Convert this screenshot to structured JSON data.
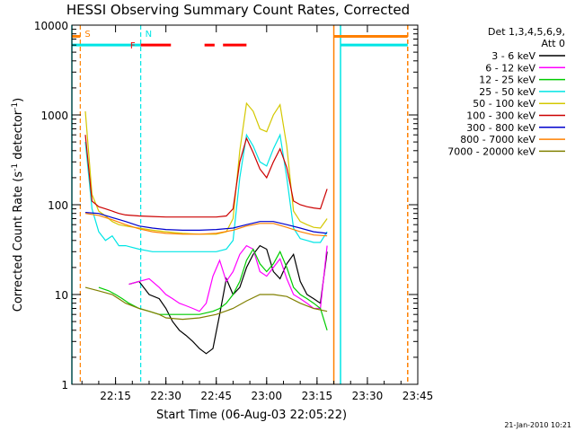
{
  "chart_data": {
    "type": "line",
    "title": "HESSI Observing Summary Count Rates, Corrected",
    "xlabel": "Start Time (06-Aug-03 22:05:22)",
    "ylabel_main": "Corrected Count Rate (s",
    "ylabel_sup1": "-1",
    "ylabel_mid": " detector",
    "ylabel_sup2": "-1",
    "ylabel_end": ")",
    "ylabel_full": "Corrected Count Rate (s-1 detector-1)",
    "xlim_minutes": [
      1322,
      1425
    ],
    "ylim": [
      1,
      10000
    ],
    "yscale": "log",
    "x_ticks": [
      {
        "t": 1335,
        "label": "22:15"
      },
      {
        "t": 1350,
        "label": "22:30"
      },
      {
        "t": 1365,
        "label": "22:45"
      },
      {
        "t": 1380,
        "label": "23:00"
      },
      {
        "t": 1395,
        "label": "23:15"
      },
      {
        "t": 1410,
        "label": "23:30"
      },
      {
        "t": 1425,
        "label": "23:45"
      }
    ],
    "y_ticks": [
      {
        "v": 1,
        "label": "1"
      },
      {
        "v": 10,
        "label": "10"
      },
      {
        "v": 100,
        "label": "100"
      },
      {
        "v": 1000,
        "label": "1000"
      },
      {
        "v": 10000,
        "label": "10000"
      }
    ],
    "legend": {
      "header_line1": "Det 1,3,4,5,6,9,",
      "header_line2": "Att 0",
      "placement": "right"
    },
    "series": [
      {
        "name": "3 - 6 keV",
        "color": "#000000",
        "x": [
          1339,
          1342,
          1345,
          1348,
          1350,
          1352,
          1354,
          1356,
          1358,
          1360,
          1362,
          1364,
          1366,
          1368,
          1370,
          1372,
          1374,
          1376,
          1378,
          1380,
          1382,
          1384,
          1386,
          1388,
          1390,
          1392,
          1394,
          1396,
          1398
        ],
        "y": [
          13,
          14,
          10,
          9,
          7,
          5,
          4,
          3.5,
          3,
          2.5,
          2.2,
          2.5,
          6,
          15,
          10,
          12,
          20,
          28,
          35,
          32,
          18,
          15,
          22,
          28,
          14,
          10,
          9,
          8,
          30
        ]
      },
      {
        "name": "6 - 12 keV",
        "color": "#ff00ff",
        "x": [
          1339,
          1342,
          1345,
          1348,
          1350,
          1352,
          1354,
          1356,
          1358,
          1360,
          1362,
          1364,
          1366,
          1368,
          1370,
          1372,
          1374,
          1376,
          1378,
          1380,
          1382,
          1384,
          1386,
          1388,
          1390,
          1392,
          1394,
          1396,
          1398
        ],
        "y": [
          13,
          14,
          15,
          12,
          10,
          9,
          8,
          7.5,
          7,
          6.5,
          8,
          16,
          24,
          14,
          18,
          28,
          35,
          32,
          18,
          16,
          20,
          25,
          15,
          10,
          9,
          8,
          7,
          7,
          35
        ]
      },
      {
        "name": "12 - 25 keV",
        "color": "#00cc00",
        "x": [
          1330,
          1333,
          1335,
          1337,
          1339,
          1342,
          1345,
          1348,
          1350,
          1355,
          1360,
          1364,
          1366,
          1368,
          1370,
          1372,
          1374,
          1376,
          1378,
          1380,
          1382,
          1384,
          1386,
          1388,
          1390,
          1392,
          1394,
          1396,
          1398
        ],
        "y": [
          12,
          11,
          10,
          9,
          8,
          7,
          6.5,
          6,
          6,
          6,
          6,
          6.5,
          7,
          8,
          10,
          14,
          24,
          32,
          22,
          18,
          22,
          30,
          20,
          12,
          10,
          9,
          8,
          7,
          4
        ]
      },
      {
        "name": "25 - 50 keV",
        "color": "#00e5e5",
        "x": [
          1326,
          1328,
          1330,
          1332,
          1334,
          1336,
          1338,
          1342,
          1346,
          1350,
          1355,
          1360,
          1365,
          1368,
          1370,
          1372,
          1374,
          1376,
          1378,
          1380,
          1382,
          1384,
          1386,
          1388,
          1390,
          1392,
          1394,
          1396,
          1398
        ],
        "y": [
          500,
          90,
          50,
          40,
          45,
          35,
          35,
          32,
          30,
          30,
          30,
          30,
          30,
          32,
          40,
          200,
          600,
          450,
          300,
          270,
          420,
          600,
          200,
          55,
          42,
          40,
          38,
          38,
          50
        ]
      },
      {
        "name": "50 - 100 keV",
        "color": "#d4c800",
        "x": [
          1326,
          1328,
          1330,
          1332,
          1334,
          1336,
          1338,
          1342,
          1346,
          1350,
          1355,
          1360,
          1365,
          1368,
          1370,
          1372,
          1374,
          1376,
          1378,
          1380,
          1382,
          1384,
          1386,
          1388,
          1390,
          1392,
          1394,
          1396,
          1398
        ],
        "y": [
          1100,
          130,
          85,
          75,
          65,
          60,
          58,
          55,
          52,
          50,
          48,
          47,
          47,
          50,
          70,
          400,
          1350,
          1100,
          700,
          650,
          1000,
          1300,
          450,
          85,
          65,
          60,
          56,
          55,
          70
        ]
      },
      {
        "name": "100 - 300 keV",
        "color": "#cc0000",
        "x": [
          1326,
          1328,
          1330,
          1332,
          1334,
          1336,
          1338,
          1342,
          1346,
          1350,
          1355,
          1360,
          1365,
          1368,
          1370,
          1372,
          1374,
          1376,
          1378,
          1380,
          1382,
          1384,
          1386,
          1388,
          1390,
          1392,
          1394,
          1396,
          1398
        ],
        "y": [
          600,
          110,
          95,
          90,
          85,
          80,
          77,
          75,
          74,
          73,
          73,
          73,
          73,
          75,
          90,
          300,
          550,
          380,
          250,
          200,
          300,
          420,
          260,
          110,
          100,
          95,
          92,
          90,
          150
        ]
      },
      {
        "name": "300 - 800 keV",
        "color": "#0000cc",
        "x": [
          1326,
          1330,
          1334,
          1338,
          1342,
          1346,
          1350,
          1355,
          1360,
          1365,
          1370,
          1374,
          1378,
          1382,
          1386,
          1390,
          1394,
          1398
        ],
        "y": [
          82,
          80,
          72,
          65,
          58,
          55,
          53,
          52,
          52,
          53,
          55,
          60,
          65,
          65,
          60,
          55,
          50,
          48
        ]
      },
      {
        "name": "800 - 7000 keV",
        "color": "#ff8000",
        "x": [
          1326,
          1330,
          1334,
          1338,
          1342,
          1346,
          1350,
          1355,
          1360,
          1365,
          1370,
          1374,
          1378,
          1382,
          1386,
          1390,
          1394,
          1398
        ],
        "y": [
          80,
          76,
          68,
          60,
          54,
          50,
          48,
          47,
          47,
          48,
          52,
          58,
          62,
          62,
          56,
          50,
          46,
          45
        ]
      },
      {
        "name": "7000 - 20000 keV",
        "color": "#808000",
        "x": [
          1326,
          1330,
          1334,
          1338,
          1342,
          1345,
          1348,
          1350,
          1355,
          1360,
          1365,
          1370,
          1374,
          1378,
          1382,
          1386,
          1390,
          1394,
          1398
        ],
        "y": [
          12,
          11,
          10,
          8,
          7,
          6.5,
          6,
          5.5,
          5.3,
          5.5,
          6,
          7,
          8.5,
          10,
          10,
          9.5,
          8,
          7,
          6.5
        ]
      }
    ],
    "markers": [
      {
        "label": "S",
        "t": 1324.5,
        "style": "dashed",
        "color": "#ff8000"
      },
      {
        "label": "N",
        "t": 1342.5,
        "style": "dashed",
        "color": "#00e5e5"
      }
    ],
    "flare_segments": {
      "label": "F",
      "color": "#ff0000",
      "y": 6000,
      "ranges": [
        [
          1342.5,
          1351.5
        ],
        [
          1361.5,
          1364.5
        ],
        [
          1367,
          1374
        ]
      ]
    },
    "saa_bar": {
      "color": "#00e5e5",
      "y": 6000,
      "ranges": [
        [
          1322,
          1342.5
        ],
        [
          1402,
          1422
        ]
      ]
    },
    "night_bar": {
      "color": "#ff8000",
      "y": 7500,
      "ranges": [
        [
          1322,
          1324.5
        ],
        [
          1400,
          1422
        ]
      ]
    },
    "vlines": [
      {
        "t": 1322,
        "color": "#00e5e5",
        "style": "solid"
      },
      {
        "t": 1400,
        "color": "#ff8000",
        "style": "solid"
      },
      {
        "t": 1402,
        "color": "#00e5e5",
        "style": "solid"
      },
      {
        "t": 1422,
        "color": "#ff8000",
        "style": "dashed"
      }
    ],
    "footer_date": "21-Jan-2010 10:21",
    "grid": false
  }
}
